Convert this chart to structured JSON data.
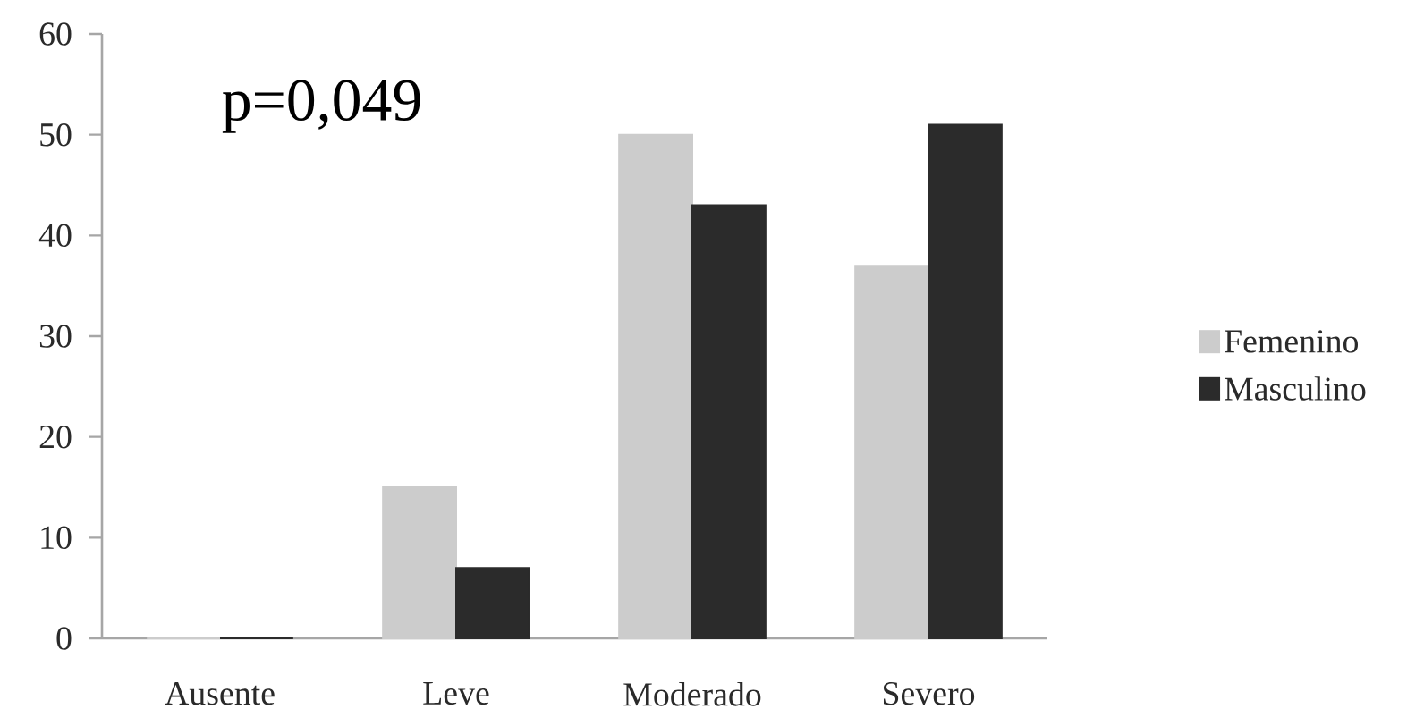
{
  "chart_data": {
    "type": "bar",
    "categories": [
      "Ausente",
      "Leve",
      "Moderado",
      "Severo"
    ],
    "series": [
      {
        "name": "Femenino",
        "color": "#cccccc",
        "values": [
          0,
          15,
          50,
          37
        ]
      },
      {
        "name": "Masculino",
        "color": "#2b2b2b",
        "values": [
          0,
          7,
          43,
          51
        ]
      }
    ],
    "ylim": [
      0,
      60
    ],
    "yticks": [
      0,
      10,
      20,
      30,
      40,
      50,
      60
    ],
    "annotations": [
      "p=0,049"
    ],
    "legend": "right",
    "grid": false
  }
}
